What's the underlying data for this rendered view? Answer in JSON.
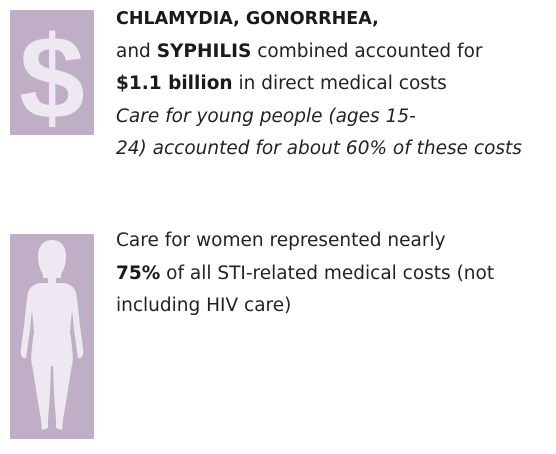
{
  "icons": {
    "dollar": "dollar-sign-icon",
    "body": "human-body-icon",
    "box_color": "#bfaec6",
    "glyph_color": "#ede8f1"
  },
  "fact1": {
    "line1_bold": "CHLAMYDIA, GONORRHEA,",
    "line2_pre": "and ",
    "line2_bold": "SYPHILIS",
    "line2_post": " combined accounted for",
    "line3_bold": "$1.1 billion",
    "line3_post": " in direct medical costs",
    "line4_italic": "Care for young people (ages 15-",
    "line5_italic": "24) accounted for about 60% of these costs"
  },
  "fact2": {
    "line1": "Care for women represented nearly",
    "line2_bold": "75%",
    "line2_post": " of all STI-related medical costs (not",
    "line3": "including HIV care)"
  }
}
